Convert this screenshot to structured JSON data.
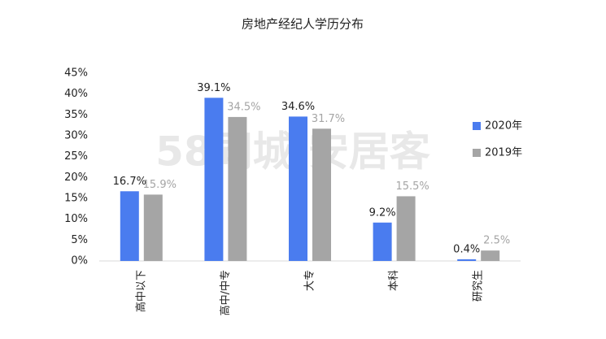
{
  "chart_data": {
    "type": "bar",
    "title": "房地产经纪人学历分布",
    "watermark": "58同城|安居客",
    "categories": [
      "高中以下",
      "高中/中专",
      "大专",
      "本科",
      "研究生"
    ],
    "series": [
      {
        "name": "2020年",
        "color": "#4a7cef",
        "values": [
          16.7,
          39.1,
          34.6,
          9.2,
          0.4
        ],
        "value_labels": [
          "16.7%",
          "39.1%",
          "34.6%",
          "9.2%",
          "0.4%"
        ]
      },
      {
        "name": "2019年",
        "color": "#a5a5a5",
        "values": [
          15.9,
          34.5,
          31.7,
          15.5,
          2.5
        ],
        "value_labels": [
          "15.9%",
          "34.5%",
          "31.7%",
          "15.5%",
          "2.5%"
        ]
      }
    ],
    "ylim": [
      0,
      45
    ],
    "yticks": [
      {
        "value": 0,
        "label": "0%"
      },
      {
        "value": 5,
        "label": "5%"
      },
      {
        "value": 10,
        "label": "10%"
      },
      {
        "value": 15,
        "label": "15%"
      },
      {
        "value": 20,
        "label": "20%"
      },
      {
        "value": 25,
        "label": "25%"
      },
      {
        "value": 30,
        "label": "30%"
      },
      {
        "value": 35,
        "label": "35%"
      },
      {
        "value": 40,
        "label": "40%"
      },
      {
        "value": 45,
        "label": "45%"
      }
    ],
    "legend": "right"
  }
}
